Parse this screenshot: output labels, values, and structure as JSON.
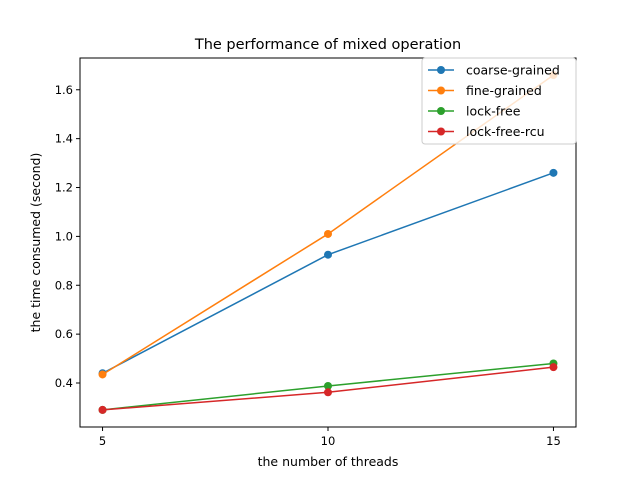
{
  "chart_data": {
    "type": "line",
    "title": "The performance of mixed operation",
    "xlabel": "the number of threads",
    "ylabel": "the time consumed (second)",
    "x": [
      5,
      10,
      15
    ],
    "xticks": [
      "5",
      "10",
      "15"
    ],
    "yticks": [
      "0.4",
      "0.6",
      "0.8",
      "1.0",
      "1.2",
      "1.4",
      "1.6"
    ],
    "xlim": [
      4.5,
      15.5
    ],
    "ylim": [
      0.22,
      1.73
    ],
    "grid": false,
    "legend_position": "top-right",
    "series": [
      {
        "name": "coarse-grained",
        "color": "#1f77b4",
        "values": [
          0.44,
          0.925,
          1.26
        ]
      },
      {
        "name": "fine-grained",
        "color": "#ff7f0e",
        "values": [
          0.435,
          1.01,
          1.66
        ]
      },
      {
        "name": "lock-free",
        "color": "#2ca02c",
        "values": [
          0.29,
          0.388,
          0.48
        ]
      },
      {
        "name": "lock-free-rcu",
        "color": "#d62728",
        "values": [
          0.29,
          0.362,
          0.465
        ]
      }
    ]
  }
}
